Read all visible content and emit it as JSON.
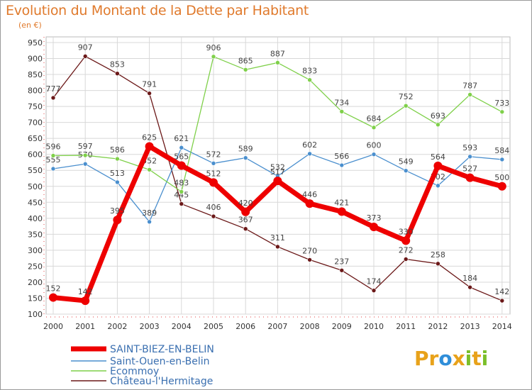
{
  "title": "Evolution du Montant de la Dette par Habitant",
  "subtitle": "(en €)",
  "logo": {
    "text": "Proxiti",
    "letters": [
      "P",
      "r",
      "o",
      "x",
      "i",
      "t",
      "i"
    ],
    "colors": [
      "#e8a21a",
      "#e8a21a",
      "#2f8ed9",
      "#e8a21a",
      "#7bbf2a",
      "#e8a21a",
      "#7bbf2a"
    ]
  },
  "chart_data": {
    "type": "line",
    "title": "Evolution du Montant de la Dette par Habitant",
    "ylabel": "(en €)",
    "xlabel": "",
    "x": [
      "2000",
      "2001",
      "2002",
      "2003",
      "2004",
      "2005",
      "2006",
      "2007",
      "2008",
      "2009",
      "2010",
      "2011",
      "2012",
      "2013",
      "2014"
    ],
    "ylim": [
      100,
      950
    ],
    "yticks": [
      100,
      150,
      200,
      250,
      300,
      350,
      400,
      450,
      500,
      550,
      600,
      650,
      700,
      750,
      800,
      850,
      900,
      950
    ],
    "grid": true,
    "legend": "bottom-left",
    "series": [
      {
        "name": "Château-l'Hermitage",
        "color": "#6b1818",
        "values": [
          777,
          907,
          853,
          791,
          445,
          406,
          367,
          311,
          270,
          237,
          174,
          272,
          258,
          184,
          142
        ]
      },
      {
        "name": "Saint-Ouen-en-Belin",
        "color": "#4a8fce",
        "values": [
          555,
          570,
          513,
          389,
          621,
          572,
          589,
          532,
          602,
          566,
          600,
          549,
          502,
          593,
          584
        ]
      },
      {
        "name": "Ecommoy",
        "color": "#7fd04a",
        "values": [
          596,
          597,
          586,
          552,
          483,
          906,
          865,
          887,
          833,
          734,
          684,
          752,
          693,
          787,
          733
        ]
      },
      {
        "name": "SAINT-BIEZ-EN-BELIN",
        "color": "#ee0000",
        "values": [
          152,
          142,
          395,
          625,
          565,
          512,
          420,
          517,
          446,
          421,
          373,
          330,
          564,
          527,
          500
        ]
      }
    ],
    "legend_order": [
      "SAINT-BIEZ-EN-BELIN",
      "Saint-Ouen-en-Belin",
      "Ecommoy",
      "Château-l'Hermitage"
    ]
  }
}
